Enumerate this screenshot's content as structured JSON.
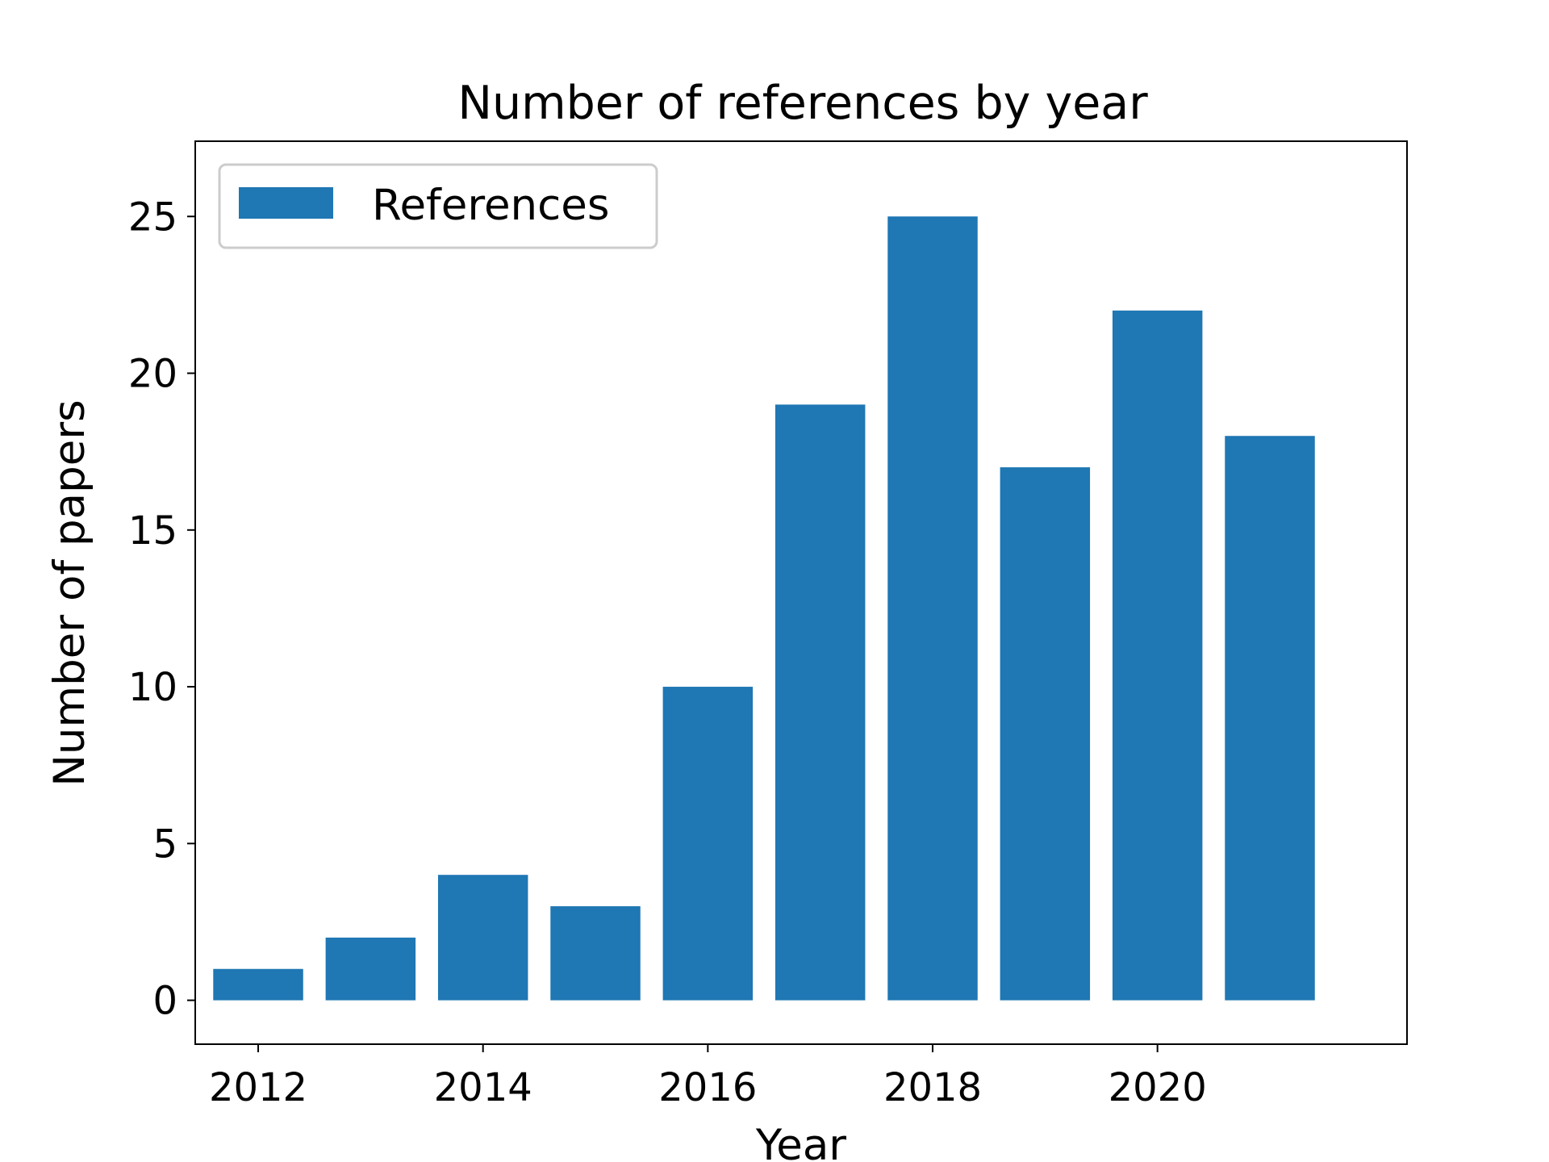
{
  "chart_data": {
    "type": "bar",
    "title": "Number of references by year",
    "xlabel": "Year",
    "ylabel": "Number of papers",
    "legend": {
      "entries": [
        "References"
      ],
      "placement": "top-left"
    },
    "series": [
      {
        "name": "References",
        "color": "#1f77b4",
        "x": [
          2012,
          2013,
          2014,
          2015,
          2016,
          2017,
          2018,
          2019,
          2020,
          2021
        ],
        "values": [
          1,
          2,
          4,
          3,
          10,
          19,
          25,
          17,
          22,
          18
        ]
      }
    ],
    "xticks": [
      "2012",
      "2014",
      "2016",
      "2018",
      "2020"
    ],
    "yticks": [
      "0",
      "5",
      "10",
      "15",
      "20",
      "25"
    ],
    "xlim": [
      2011.44,
      2022.22
    ],
    "ylim": [
      -1.4,
      27.4
    ],
    "grid": false
  }
}
